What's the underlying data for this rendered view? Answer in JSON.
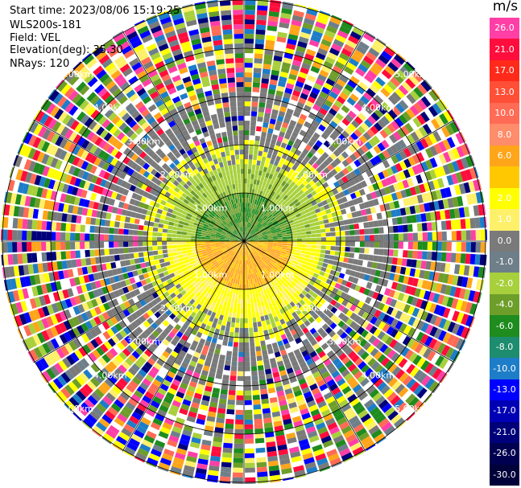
{
  "info": {
    "start_time": "Start time: 2023/08/06 15:19:25",
    "instrument": "WLS200s-181",
    "field": "Field: VEL",
    "elevation": "Elevation(deg): 35.30",
    "nrays": "NRays: 120"
  },
  "colorbar": {
    "unit": "m/s",
    "segments": [
      {
        "label": "26.0",
        "color": "#ff3fa6"
      },
      {
        "label": "21.0",
        "color": "#ff0d3c"
      },
      {
        "label": "17.0",
        "color": "#ff2a1a"
      },
      {
        "label": "13.0",
        "color": "#ff4f36"
      },
      {
        "label": "10.0",
        "color": "#ff6b55"
      },
      {
        "label": "8.0",
        "color": "#ff8c6a"
      },
      {
        "label": "6.0",
        "color": "#ffa51a"
      },
      {
        "label": "",
        "color": "#ffc800"
      },
      {
        "label": "2.0",
        "color": "#ffff00"
      },
      {
        "label": "1.0",
        "color": "#fff06a"
      },
      {
        "label": "0.0",
        "color": "#7a7a7a"
      },
      {
        "label": "-1.0",
        "color": "#6e7f8a"
      },
      {
        "label": "-2.0",
        "color": "#a8d03c"
      },
      {
        "label": "-4.0",
        "color": "#6e9e2a"
      },
      {
        "label": "-6.0",
        "color": "#1e8c1e"
      },
      {
        "label": "-8.0",
        "color": "#1e8c6e"
      },
      {
        "label": "-10.0",
        "color": "#1e7dc8"
      },
      {
        "label": "-13.0",
        "color": "#0000ff"
      },
      {
        "label": "-17.0",
        "color": "#0000b4"
      },
      {
        "label": "-21.0",
        "color": "#00007a"
      },
      {
        "label": "-26.0",
        "color": "#000050"
      },
      {
        "label": "-30.0",
        "color": "#00003a"
      }
    ]
  },
  "range_rings": {
    "labels": [
      "1.00km",
      "2.00km",
      "3.00km",
      "4.00km",
      "5.00km"
    ]
  }
}
